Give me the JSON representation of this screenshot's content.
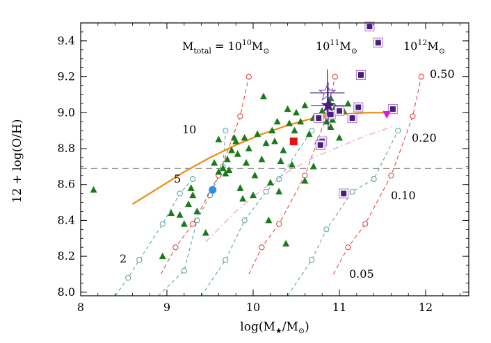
{
  "chart_data": {
    "type": "scatter",
    "xlabel": "log(M★/M⊙)",
    "ylabel": "12 + log(O/H)",
    "xlim": [
      8.0,
      12.5
    ],
    "ylim": [
      7.98,
      9.5
    ],
    "x_ticks": [
      8,
      9,
      10,
      11,
      12
    ],
    "x_tick_labels": [
      "8",
      "9",
      "10",
      "11",
      "12"
    ],
    "y_ticks": [
      8.0,
      8.2,
      8.4,
      8.6,
      8.8,
      9.0,
      9.2,
      9.4
    ],
    "y_tick_labels": [
      "8.0",
      "8.2",
      "8.4",
      "8.6",
      "8.8",
      "9.0",
      "9.2",
      "9.4"
    ],
    "horizontal_line": 8.69,
    "colors": {
      "triangles": "#1a7a1a",
      "squares_fill": "#4b1e7e",
      "squares_outline": "#b98acb",
      "mass_curves": "#e8322e",
      "ratio_curves": "#4f9a9a",
      "relation": "#f08a0a",
      "dashdot": "#f6b2c2",
      "star": "#4b1e7e",
      "red_square": "#e41212",
      "blue_circle": "#2b8fe6",
      "magenta_triangle": "#e018e6",
      "hline": "#888888"
    },
    "series": [
      {
        "name": "green triangles",
        "marker": "triangle",
        "points": [
          [
            8.15,
            8.57
          ],
          [
            8.95,
            8.2
          ],
          [
            9.05,
            8.44
          ],
          [
            9.15,
            8.43
          ],
          [
            9.2,
            8.38
          ],
          [
            9.25,
            8.49
          ],
          [
            9.28,
            8.58
          ],
          [
            9.35,
            8.45
          ],
          [
            9.45,
            8.33
          ],
          [
            9.55,
            8.72
          ],
          [
            9.6,
            8.67
          ],
          [
            9.65,
            8.69
          ],
          [
            9.68,
            8.66
          ],
          [
            9.7,
            8.74
          ],
          [
            9.72,
            8.68
          ],
          [
            9.75,
            8.79
          ],
          [
            9.78,
            8.86
          ],
          [
            9.8,
            8.84
          ],
          [
            9.85,
            8.58
          ],
          [
            9.88,
            8.52
          ],
          [
            9.9,
            8.86
          ],
          [
            9.92,
            8.72
          ],
          [
            9.95,
            8.8
          ],
          [
            10.0,
            8.54
          ],
          [
            10.02,
            8.65
          ],
          [
            10.05,
            8.88
          ],
          [
            10.1,
            8.74
          ],
          [
            10.12,
            9.09
          ],
          [
            10.15,
            8.83
          ],
          [
            10.18,
            8.4
          ],
          [
            10.2,
            8.61
          ],
          [
            10.22,
            8.9
          ],
          [
            10.25,
            8.84
          ],
          [
            10.28,
            8.95
          ],
          [
            10.3,
            8.56
          ],
          [
            10.32,
            8.73
          ],
          [
            10.35,
            8.79
          ],
          [
            10.38,
            8.27
          ],
          [
            10.4,
            9.02
          ],
          [
            10.42,
            8.94
          ],
          [
            10.45,
            8.71
          ],
          [
            10.48,
            8.9
          ],
          [
            10.5,
            9.0
          ],
          [
            10.55,
            8.95
          ],
          [
            10.6,
            8.62
          ],
          [
            10.65,
            8.88
          ],
          [
            10.7,
            8.7
          ],
          [
            10.75,
            8.84
          ],
          [
            10.8,
            9.01
          ],
          [
            10.85,
            8.95
          ],
          [
            10.88,
            9.06
          ],
          [
            10.9,
            8.92
          ],
          [
            10.92,
            8.96
          ],
          [
            10.95,
            9.03
          ],
          [
            11.0,
            8.86
          ],
          [
            11.05,
            9.01
          ],
          [
            11.1,
            9.05
          ],
          [
            9.6,
            8.85
          ],
          [
            9.82,
            8.77
          ],
          [
            10.6,
            9.04
          ],
          [
            10.7,
            8.97
          ],
          [
            9.3,
            8.54
          ],
          [
            10.9,
            9.08
          ]
        ]
      },
      {
        "name": "purple squares",
        "marker": "square",
        "points": [
          [
            10.76,
            8.97
          ],
          [
            10.8,
            8.84
          ],
          [
            10.78,
            8.82
          ],
          [
            10.9,
            8.99
          ],
          [
            11.0,
            9.01
          ],
          [
            11.05,
            8.55
          ],
          [
            11.15,
            8.97
          ],
          [
            11.22,
            9.03
          ],
          [
            11.25,
            9.21
          ],
          [
            11.35,
            9.48
          ],
          [
            11.45,
            9.39
          ],
          [
            11.62,
            9.02
          ]
        ]
      },
      {
        "name": "red square",
        "marker": "square",
        "points": [
          [
            10.47,
            8.84
          ]
        ]
      },
      {
        "name": "blue circle",
        "marker": "circle",
        "points": [
          [
            9.53,
            8.57
          ]
        ]
      },
      {
        "name": "magenta triangle",
        "marker": "down-triangle",
        "points": [
          [
            11.55,
            8.99
          ]
        ]
      },
      {
        "name": "stars",
        "marker": "star",
        "points": [
          [
            10.87,
            9.04
          ],
          [
            10.86,
            9.11
          ]
        ],
        "x_err": 0.2,
        "y_err": 0.13
      },
      {
        "name": "mass-metallicity relation",
        "type": "line",
        "x": [
          8.6,
          8.9,
          9.2,
          9.5,
          9.8,
          10.1,
          10.4,
          10.7,
          11.0,
          11.3,
          11.6
        ],
        "y": [
          8.49,
          8.58,
          8.67,
          8.75,
          8.82,
          8.88,
          8.93,
          8.97,
          8.99,
          9.0,
          9.0
        ]
      },
      {
        "name": "dash-dot relation",
        "type": "line",
        "x": [
          9.45,
          9.8,
          10.1,
          10.4,
          10.7,
          11.0,
          11.3,
          11.6
        ],
        "y": [
          8.28,
          8.45,
          8.57,
          8.67,
          8.75,
          8.81,
          8.87,
          8.92
        ]
      }
    ],
    "mass_curves": [
      {
        "label": "10^10",
        "x": [
          8.93,
          9.1,
          9.3,
          9.6,
          9.85,
          9.95
        ],
        "y": [
          8.1,
          8.25,
          8.38,
          8.65,
          8.98,
          9.2
        ]
      },
      {
        "label": "10^11",
        "x": [
          9.95,
          10.1,
          10.3,
          10.6,
          10.85,
          10.95
        ],
        "y": [
          8.1,
          8.25,
          8.38,
          8.65,
          8.98,
          9.2
        ]
      },
      {
        "label": "10^12",
        "x": [
          10.93,
          11.1,
          11.3,
          11.6,
          11.85,
          11.95
        ],
        "y": [
          8.1,
          8.25,
          8.38,
          8.65,
          8.98,
          9.2
        ]
      }
    ],
    "ratio_curves": [
      {
        "label": "2",
        "x": [
          8.4,
          8.55,
          8.68,
          8.95,
          9.15,
          9.3
        ],
        "y": [
          7.98,
          8.08,
          8.18,
          8.38,
          8.55,
          8.63
        ]
      },
      {
        "label": "5",
        "x": [
          8.9,
          9.2,
          9.35,
          9.5,
          9.65,
          9.68
        ],
        "y": [
          7.98,
          8.12,
          8.4,
          8.54,
          8.7,
          8.9
        ]
      },
      {
        "label": "10",
        "x": [
          9.4,
          9.68,
          9.9,
          10.15,
          10.3,
          10.68
        ],
        "y": [
          7.98,
          8.18,
          8.4,
          8.56,
          8.63,
          8.9
        ]
      },
      {
        "label": "0.05",
        "x": [
          10.4,
          10.68,
          10.85,
          11.15,
          11.4,
          11.68
        ],
        "y": [
          7.98,
          8.18,
          8.35,
          8.56,
          8.63,
          8.9
        ]
      }
    ],
    "annotations": {
      "mtotal_prefix": "M",
      "mtotal_sub": "total",
      "mtotal_eq": " = 10",
      "mtotal_exp": "10",
      "mtotal_unit": "M",
      "sun_symbol": "⊙",
      "m11_base": "10",
      "m11_exp": "11",
      "m11_unit": "M",
      "m12_base": "10",
      "m12_exp": "12",
      "m12_unit": "M",
      "label_050": "0.50",
      "label_020": "0.20",
      "label_010": "0.10",
      "label_005": "0.05",
      "label_10": "10",
      "label_5": "5",
      "label_2": "2"
    }
  }
}
